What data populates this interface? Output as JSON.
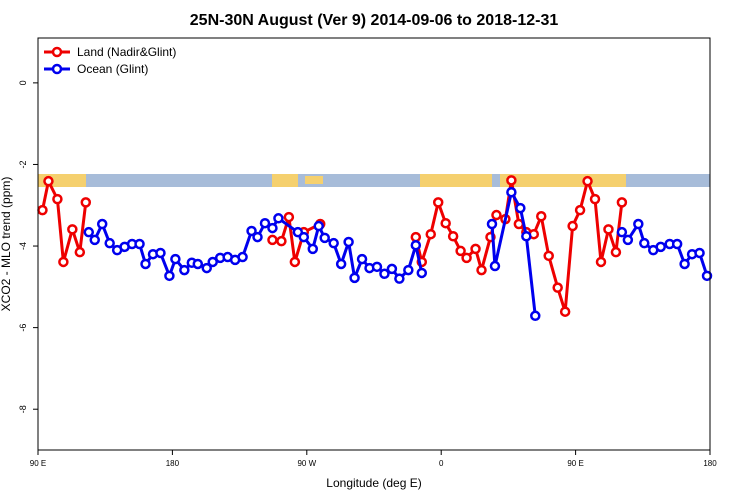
{
  "chart_data": {
    "type": "line",
    "title": "25N-30N August (Ver 9)   2014-09-06 to 2018-12-31",
    "x_label": "Longitude (deg E)",
    "y_label": "XCO2 - MLO trend (ppm)",
    "xlim": [
      90,
      540
    ],
    "xticks": [
      {
        "value": 90,
        "label": "90 E"
      },
      {
        "value": 180,
        "label": "180"
      },
      {
        "value": 270,
        "label": "90 W"
      },
      {
        "value": 360,
        "label": "0"
      },
      {
        "value": 450,
        "label": "90 E"
      },
      {
        "value": 540,
        "label": "180"
      }
    ],
    "ylim": [
      -9,
      1.1
    ],
    "yticks": [
      0,
      -2,
      -4,
      -6,
      -8
    ],
    "legend": "top-left",
    "series": [
      {
        "name": "Land (Nadir&Glint)",
        "color": "#ee0000",
        "x": [
          93,
          97,
          103,
          107,
          113,
          118,
          122,
          183,
          247,
          253,
          258,
          262,
          268,
          279,
          300,
          343,
          347,
          353,
          358,
          363,
          368,
          373,
          377,
          383,
          387,
          393,
          397,
          403,
          407,
          412,
          417,
          422,
          427,
          432,
          438,
          443,
          448,
          453,
          458,
          463,
          467,
          472,
          477,
          481
        ],
        "values": [
          -3.12,
          -2.41,
          -2.85,
          -4.39,
          -3.59,
          -4.15,
          -2.93,
          null,
          -3.85,
          -3.88,
          -3.29,
          -4.39,
          -3.66,
          -3.46,
          null,
          -3.78,
          -4.39,
          -3.71,
          -2.93,
          -3.44,
          -3.76,
          -4.12,
          -4.29,
          -4.07,
          -4.59,
          -3.78,
          -3.24,
          -3.34,
          -2.39,
          -3.46,
          -3.66,
          -3.71,
          -3.27,
          -4.24,
          -5.02,
          -5.61,
          -3.51,
          -3.12,
          -2.41,
          -2.85,
          -4.39,
          -3.59,
          -4.15,
          -2.93
        ]
      },
      {
        "name": "Ocean (Glint)",
        "color": "#0000ee",
        "x": [
          124,
          128,
          133,
          138,
          143,
          148,
          153,
          158,
          162,
          167,
          172,
          178,
          182,
          188,
          193,
          197,
          203,
          207,
          212,
          217,
          222,
          227,
          233,
          237,
          242,
          247,
          251,
          264,
          268,
          274,
          278,
          282,
          288,
          293,
          298,
          302,
          307,
          312,
          317,
          322,
          327,
          332,
          338,
          343,
          347,
          370,
          394,
          396,
          407,
          413,
          417,
          423,
          450,
          481,
          485,
          492,
          496,
          502,
          507,
          513,
          518,
          523,
          528,
          533,
          538
        ],
        "values": [
          -3.66,
          -3.85,
          -3.46,
          -3.93,
          -4.1,
          -4.02,
          -3.95,
          -3.95,
          -4.44,
          -4.2,
          -4.17,
          -4.73,
          -4.32,
          -4.59,
          -4.41,
          -4.44,
          -4.54,
          -4.39,
          -4.29,
          -4.27,
          -4.34,
          -4.27,
          -3.63,
          -3.78,
          -3.44,
          -3.56,
          -3.32,
          -3.66,
          -3.78,
          -4.07,
          -3.51,
          -3.8,
          -3.93,
          -4.44,
          -3.9,
          -4.78,
          -4.32,
          -4.54,
          -4.51,
          -4.68,
          -4.56,
          -4.8,
          -4.59,
          -3.98,
          -4.66,
          null,
          -3.46,
          -4.49,
          -2.68,
          -3.07,
          -3.76,
          -5.71,
          null,
          -3.66,
          -3.85,
          -3.46,
          -3.93,
          -4.1,
          -4.02,
          -3.95,
          -3.95,
          -4.44,
          -4.2,
          -4.17,
          -4.73
        ]
      }
    ]
  }
}
